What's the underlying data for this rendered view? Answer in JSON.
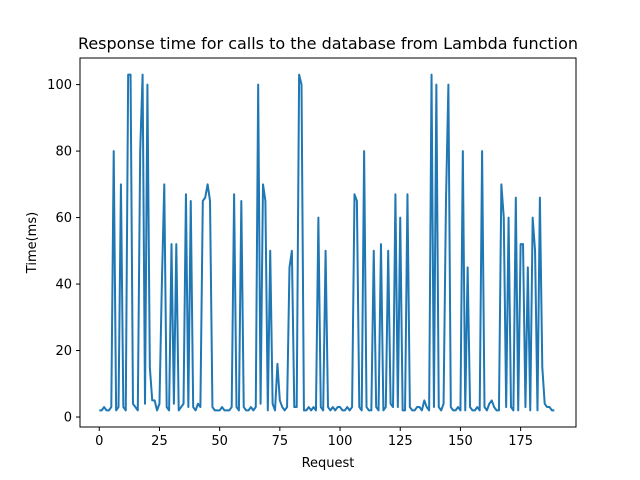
{
  "chart_data": {
    "type": "line",
    "title": "Response time for calls to the database from Lambda function",
    "xlabel": "Request",
    "ylabel": "Time(ms)",
    "xlim": [
      -8,
      198
    ],
    "ylim": [
      -3,
      108
    ],
    "xticks": [
      0,
      25,
      50,
      75,
      100,
      125,
      150,
      175
    ],
    "yticks": [
      0,
      20,
      40,
      60,
      80,
      100
    ],
    "grid": false,
    "color": "#1f77b4",
    "series": [
      {
        "name": "",
        "x": [
          0,
          1,
          2,
          3,
          4,
          5,
          6,
          7,
          8,
          9,
          10,
          11,
          12,
          13,
          14,
          15,
          16,
          17,
          18,
          19,
          20,
          21,
          22,
          23,
          24,
          25,
          26,
          27,
          28,
          29,
          30,
          31,
          32,
          33,
          34,
          35,
          36,
          37,
          38,
          39,
          40,
          41,
          42,
          43,
          44,
          45,
          46,
          47,
          48,
          49,
          50,
          51,
          52,
          53,
          54,
          55,
          56,
          57,
          58,
          59,
          60,
          61,
          62,
          63,
          64,
          65,
          66,
          67,
          68,
          69,
          70,
          71,
          72,
          73,
          74,
          75,
          76,
          77,
          78,
          79,
          80,
          81,
          82,
          83,
          84,
          85,
          86,
          87,
          88,
          89,
          90,
          91,
          92,
          93,
          94,
          95,
          96,
          97,
          98,
          99,
          100,
          101,
          102,
          103,
          104,
          105,
          106,
          107,
          108,
          109,
          110,
          111,
          112,
          113,
          114,
          115,
          116,
          117,
          118,
          119,
          120,
          121,
          122,
          123,
          124,
          125,
          126,
          127,
          128,
          129,
          130,
          131,
          132,
          133,
          134,
          135,
          136,
          137,
          138,
          139,
          140,
          141,
          142,
          143,
          144,
          145,
          146,
          147,
          148,
          149,
          150,
          151,
          152,
          153,
          154,
          155,
          156,
          157,
          158,
          159,
          160,
          161,
          162,
          163,
          164,
          165,
          166,
          167,
          168,
          169,
          170,
          171,
          172,
          173,
          174,
          175,
          176,
          177,
          178,
          179,
          180,
          181,
          182,
          183,
          184,
          185,
          186,
          187,
          188,
          189
        ],
        "y": [
          2,
          2,
          3,
          2,
          2,
          3,
          80,
          2,
          3,
          70,
          3,
          2,
          103,
          103,
          4,
          3,
          2,
          80,
          103,
          4,
          100,
          15,
          5,
          5,
          2,
          4,
          40,
          70,
          3,
          2,
          52,
          4,
          52,
          2,
          3,
          4,
          67,
          3,
          65,
          3,
          2,
          4,
          3,
          65,
          66,
          70,
          65,
          3,
          2,
          2,
          2,
          3,
          2,
          2,
          2,
          3,
          67,
          3,
          2,
          65,
          3,
          2,
          2,
          3,
          2,
          3,
          100,
          4,
          70,
          65,
          2,
          50,
          4,
          2,
          16,
          5,
          3,
          2,
          3,
          45,
          50,
          3,
          3,
          103,
          100,
          2,
          2,
          3,
          2,
          3,
          2,
          60,
          3,
          2,
          50,
          3,
          2,
          3,
          2,
          3,
          3,
          2,
          2,
          3,
          2,
          3,
          67,
          65,
          3,
          2,
          80,
          3,
          2,
          2,
          50,
          3,
          2,
          52,
          2,
          3,
          50,
          4,
          3,
          67,
          3,
          60,
          2,
          2,
          67,
          3,
          2,
          2,
          3,
          3,
          2,
          5,
          3,
          2,
          103,
          3,
          100,
          3,
          2,
          4,
          65,
          100,
          3,
          2,
          2,
          3,
          2,
          80,
          2,
          45,
          3,
          2,
          2,
          3,
          2,
          80,
          3,
          2,
          4,
          5,
          3,
          2,
          2,
          70,
          60,
          3,
          60,
          3,
          2,
          66,
          2,
          52,
          52,
          3,
          45,
          2,
          60,
          50,
          2,
          66,
          15,
          4,
          3,
          3,
          2,
          2
        ]
      }
    ]
  }
}
